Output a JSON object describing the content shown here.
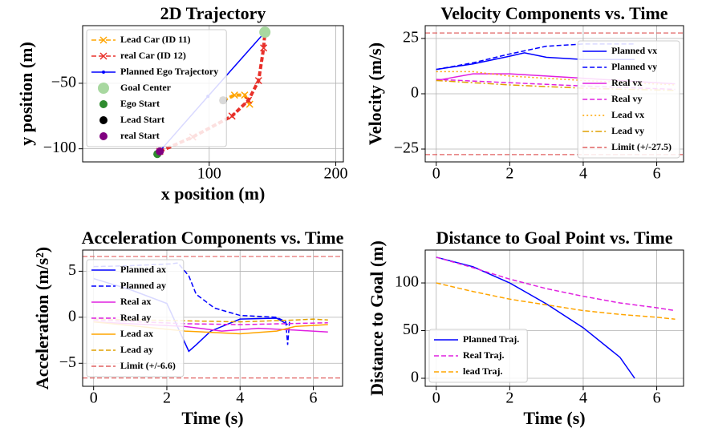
{
  "chart_data": [
    {
      "type": "line",
      "title": "2D Trajectory",
      "xlabel": "x position (m)",
      "ylabel": "y position (m)",
      "xlim": [
        0,
        206
      ],
      "ylim": [
        -110,
        -6
      ],
      "xticks": [
        100,
        200
      ],
      "yticks": [
        {
          "value": -50,
          "label": "−50"
        },
        {
          "value": -100,
          "label": "−100"
        }
      ],
      "grid": true,
      "legend": "upper left",
      "series": [
        {
          "name": "Lead Car (ID 11)",
          "color": "#ffa500",
          "style": "dashed",
          "marker": "x",
          "x": [
            111,
            120,
            128,
            132
          ],
          "values": [
            -63,
            -59,
            -59,
            -66
          ]
        },
        {
          "name": "real Car (ID 12)",
          "color": "#e8302a",
          "style": "dashed",
          "marker": "x",
          "x": [
            61,
            87,
            118,
            131,
            139,
            143,
            144
          ],
          "values": [
            -102,
            -91,
            -75,
            -63,
            -48,
            -23,
            -11
          ]
        },
        {
          "name": "Planned Ego Trajectory",
          "color": "#0000ff",
          "style": "solid",
          "marker": ".",
          "x": [
            59,
            99,
            144
          ],
          "values": [
            -104,
            -60,
            -11
          ]
        },
        {
          "name": "Goal Center",
          "color": "#a8d8a0",
          "marker": "o",
          "x": [
            144
          ],
          "values": [
            -11
          ]
        },
        {
          "name": "Ego Start",
          "color": "#2e8b2e",
          "marker": "o",
          "x": [
            59
          ],
          "values": [
            -104
          ]
        },
        {
          "name": "Lead Start",
          "color": "#000000",
          "marker": "o",
          "x": [
            111
          ],
          "values": [
            -63
          ]
        },
        {
          "name": "real Start",
          "color": "#800080",
          "marker": "o",
          "x": [
            61
          ],
          "values": [
            -102
          ]
        }
      ]
    },
    {
      "type": "line",
      "title": "Velocity Components vs. Time",
      "ylabel": "Velocity (m/s)",
      "xlim": [
        -0.3,
        6.73
      ],
      "ylim": [
        -30.8,
        30.8
      ],
      "xticks": [
        0,
        2,
        4,
        6
      ],
      "yticks": [
        {
          "value": -25,
          "label": "−25"
        },
        0,
        25
      ],
      "grid": true,
      "legend": "lower right",
      "series": [
        {
          "name": "Planned vx",
          "color": "#0000ff",
          "style": "solid",
          "x": [
            0,
            1,
            2,
            2.4,
            3,
            4,
            5.4
          ],
          "values": [
            11,
            13.5,
            17,
            18.5,
            16.5,
            15.5,
            15.5
          ]
        },
        {
          "name": "Planned vy",
          "color": "#0000ff",
          "style": "dashed",
          "x": [
            0,
            1,
            2,
            3,
            4,
            5.4
          ],
          "values": [
            11,
            14,
            18,
            21.5,
            22.5,
            22.5
          ]
        },
        {
          "name": "Real vx",
          "color": "#e020e0",
          "style": "solid",
          "x": [
            0,
            1,
            2,
            3,
            4,
            5,
            6.5
          ],
          "values": [
            6,
            9,
            9,
            8,
            7,
            6,
            4.5
          ]
        },
        {
          "name": "Real vy",
          "color": "#e020e0",
          "style": "dashed",
          "x": [
            0,
            2,
            4,
            6.5
          ],
          "values": [
            6.5,
            5,
            3.5,
            2
          ]
        },
        {
          "name": "Lead vx",
          "color": "#ffa500",
          "style": "dotted",
          "x": [
            0,
            1,
            2,
            4,
            6.5
          ],
          "values": [
            10,
            10,
            8,
            6,
            4
          ]
        },
        {
          "name": "Lead vy",
          "color": "#e0a000",
          "style": "dashdot",
          "x": [
            0,
            2,
            4,
            6.5
          ],
          "values": [
            6,
            4,
            2.5,
            1.5
          ]
        },
        {
          "name": "Limit (+/-27.5)",
          "color": "#e06060",
          "style": "dashed",
          "hlines": [
            27.5,
            -27.5
          ]
        }
      ]
    },
    {
      "type": "line",
      "title": "Acceleration Components vs. Time",
      "xlabel": "Time (s)",
      "ylabel": "Acceleration (m/s²)",
      "xlim": [
        -0.3,
        6.8
      ],
      "ylim": [
        -7.5,
        7.3
      ],
      "xticks": [
        0,
        2,
        4,
        6
      ],
      "yticks": [
        {
          "value": -5,
          "label": "−5"
        },
        0,
        5
      ],
      "grid": true,
      "legend": "center left",
      "series": [
        {
          "name": "Planned ax",
          "color": "#0000ff",
          "style": "solid",
          "x": [
            0,
            1,
            2,
            2.6,
            2.8,
            3.2,
            4,
            5,
            5.3
          ],
          "values": [
            4.2,
            3,
            1.5,
            -3.7,
            -3,
            -1.5,
            -0.2,
            -0.1,
            -0.8
          ]
        },
        {
          "name": "Planned ay",
          "color": "#0000ff",
          "style": "dashed",
          "x": [
            0,
            1,
            2.1,
            2.3,
            2.6,
            2.8,
            3.3,
            4,
            5,
            5.25,
            5.3,
            5.35
          ],
          "values": [
            5.5,
            5.6,
            5.8,
            5.9,
            4.5,
            2.5,
            1,
            0.2,
            0,
            -0.5,
            -3,
            -0.5
          ]
        },
        {
          "name": "Real ax",
          "color": "#e020e0",
          "style": "solid",
          "x": [
            0,
            2.5,
            3.5,
            4.5,
            5.5,
            6.4
          ],
          "values": [
            -0.5,
            -1,
            -1.5,
            -1.2,
            -1.4,
            -1.6
          ]
        },
        {
          "name": "Real ay",
          "color": "#e020e0",
          "style": "dashed",
          "x": [
            0,
            2.5,
            4,
            6.4
          ],
          "values": [
            -0.3,
            -0.7,
            -0.8,
            -0.6
          ]
        },
        {
          "name": "Lead ax",
          "color": "#ffa500",
          "style": "solid",
          "x": [
            0,
            2.5,
            4,
            5,
            5.5,
            6.4
          ],
          "values": [
            -0.5,
            -1.5,
            -1.8,
            -1.5,
            -1,
            -0.8
          ]
        },
        {
          "name": "Lead ay",
          "color": "#e0a000",
          "style": "dashed",
          "x": [
            0,
            4,
            5.5,
            6,
            6.4
          ],
          "values": [
            -0.2,
            -0.5,
            -0.3,
            -0.2,
            -0.3
          ]
        },
        {
          "name": "Limit (+/-6.6)",
          "color": "#e06060",
          "style": "dashed",
          "hlines": [
            6.6,
            -6.6
          ]
        }
      ]
    },
    {
      "type": "line",
      "title": "Distance to Goal Point vs. Time",
      "xlabel": "Time (s)",
      "ylabel": "Distance to Goal (m)",
      "xlim": [
        -0.3,
        6.73
      ],
      "ylim": [
        -8.4,
        134.5
      ],
      "xticks": [
        0,
        2,
        4,
        6
      ],
      "yticks": [
        0,
        50,
        100
      ],
      "grid": true,
      "legend": "lower left",
      "series": [
        {
          "name": "Planned Traj.",
          "color": "#0000ff",
          "style": "solid",
          "x": [
            0,
            1,
            2,
            2.5,
            3,
            4,
            5,
            5.4
          ],
          "values": [
            127,
            117,
            100,
            89,
            78,
            53,
            22,
            0
          ]
        },
        {
          "name": "Real Traj.",
          "color": "#e020e0",
          "style": "dashed",
          "x": [
            0,
            1,
            2,
            3,
            4,
            5,
            6,
            6.5
          ],
          "values": [
            127,
            116,
            104,
            94,
            86,
            79,
            74,
            71
          ]
        },
        {
          "name": "lead Traj.",
          "color": "#ffa500",
          "style": "dashed",
          "x": [
            0,
            1,
            2,
            3,
            4,
            5,
            6,
            6.5
          ],
          "values": [
            100,
            91,
            83,
            77,
            71,
            67,
            64,
            62
          ]
        }
      ]
    }
  ]
}
